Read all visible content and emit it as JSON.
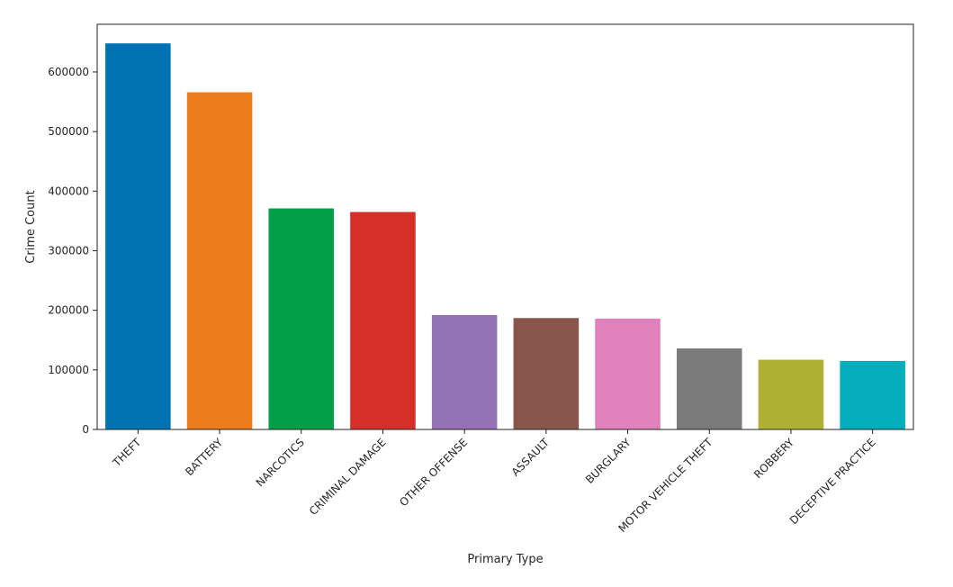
{
  "chart_data": {
    "type": "bar",
    "title": "",
    "xlabel": "Primary Type",
    "ylabel": "Crime Count",
    "categories": [
      "THEFT",
      "BATTERY",
      "NARCOTICS",
      "CRIMINAL DAMAGE",
      "OTHER OFFENSE",
      "ASSAULT",
      "BURGLARY",
      "MOTOR VEHICLE THEFT",
      "ROBBERY",
      "DECEPTIVE PRACTICE"
    ],
    "values": [
      648000,
      566000,
      371000,
      365000,
      192000,
      187000,
      186000,
      136000,
      117000,
      115000
    ],
    "colors": [
      "#0173b2",
      "#ee7d1c",
      "#029e49",
      "#d62f2a",
      "#9470b5",
      "#8a564b",
      "#e080bc",
      "#7b7b7b",
      "#b0b034",
      "#02aebb"
    ],
    "ylim": [
      0,
      680000
    ],
    "yticks": [
      0,
      100000,
      200000,
      300000,
      400000,
      500000,
      600000
    ],
    "ytick_labels": [
      "0",
      "100000",
      "200000",
      "300000",
      "400000",
      "500000",
      "600000"
    ],
    "grid": false,
    "legend": "none"
  }
}
